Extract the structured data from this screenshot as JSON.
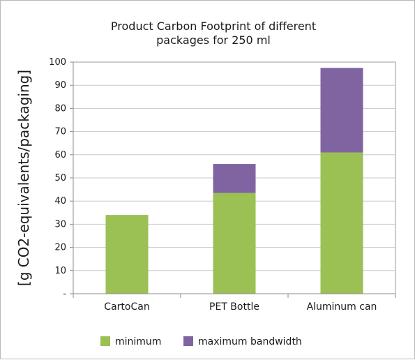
{
  "chart_data": {
    "type": "bar",
    "stacked": true,
    "title_lines": [
      "Product Carbon Footprint of different",
      "packages for 250 ml"
    ],
    "ylabel": "[g CO2-equivalents/packaging]",
    "xlabel": "",
    "categories": [
      "CartoCan",
      "PET Bottle",
      "Aluminum can"
    ],
    "series": [
      {
        "name": "minimum",
        "values": [
          34,
          43.5,
          61
        ],
        "color": "#9bc053"
      },
      {
        "name": "maximum bandwidth",
        "values": [
          0,
          12.5,
          36.5
        ],
        "color": "#8064a2"
      }
    ],
    "ylim": [
      0,
      100
    ],
    "yticks": [
      0,
      10,
      20,
      30,
      40,
      50,
      60,
      70,
      80,
      90,
      100
    ],
    "ytick_labels": [
      "-",
      "10",
      "20",
      "30",
      "40",
      "50",
      "60",
      "70",
      "80",
      "90",
      "100"
    ],
    "grid": true,
    "legend_position": "bottom",
    "colors": {
      "grid": "#c8c8c8",
      "axis": "#8c8c8c",
      "frame": "#b9b9b9"
    }
  }
}
